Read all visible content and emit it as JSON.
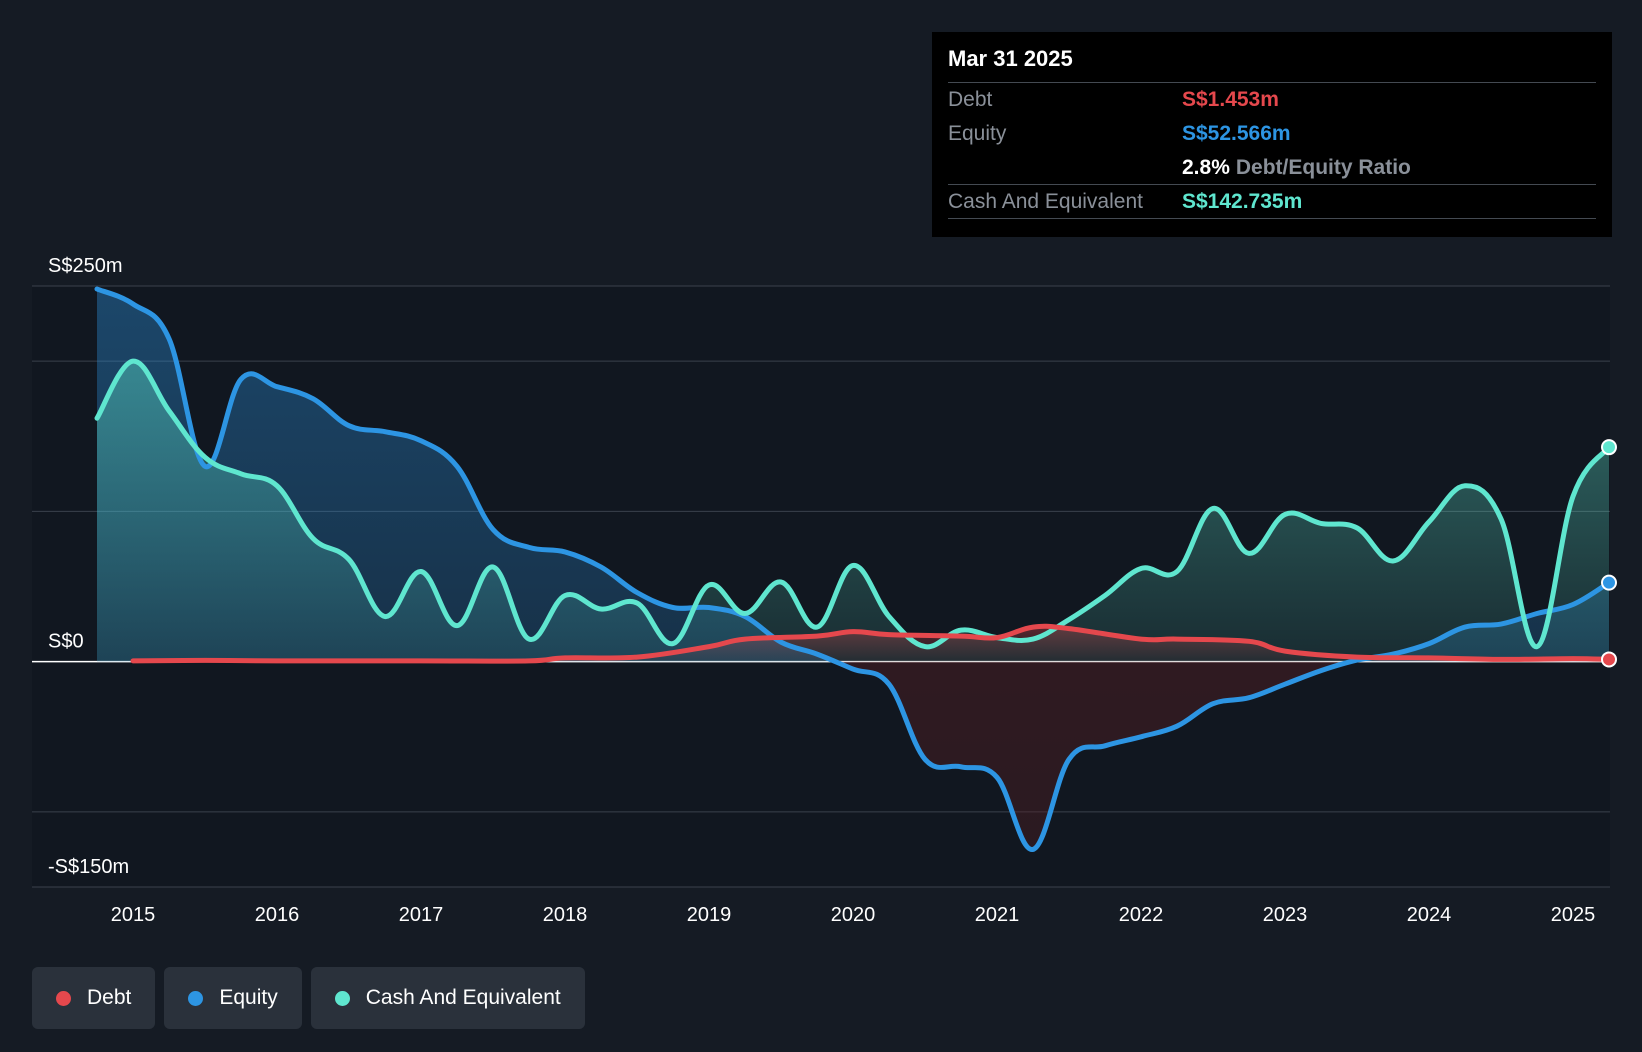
{
  "tooltip": {
    "date": "Mar 31 2025",
    "debt_label": "Debt",
    "debt_value": "S$1.453m",
    "equity_label": "Equity",
    "equity_value": "S$52.566m",
    "ratio_pct": "2.8%",
    "ratio_label": "Debt/Equity Ratio",
    "cash_label": "Cash And Equivalent",
    "cash_value": "S$142.735m"
  },
  "legend": [
    {
      "label": "Debt",
      "color": "#e5484d"
    },
    {
      "label": "Equity",
      "color": "#2d95e3"
    },
    {
      "label": "Cash And Equivalent",
      "color": "#5fe6cf"
    }
  ],
  "chart_data": {
    "type": "area",
    "ylim": [
      -150,
      250
    ],
    "y_tick_labels": [
      {
        "value": 250,
        "label": "S$250m"
      },
      {
        "value": 0,
        "label": "S$0"
      },
      {
        "value": -150,
        "label": "-S$150m"
      }
    ],
    "y_gridlines": [
      250,
      200,
      100,
      0,
      -100,
      -150
    ],
    "x_range": [
      2014.75,
      2025.25
    ],
    "x_ticks": [
      2015,
      2016,
      2017,
      2018,
      2019,
      2020,
      2021,
      2022,
      2023,
      2024,
      2025
    ],
    "x_tick_labels": [
      "2015",
      "2016",
      "2017",
      "2018",
      "2019",
      "2020",
      "2021",
      "2022",
      "2023",
      "2024",
      "2025"
    ],
    "series": [
      {
        "name": "Debt",
        "color": "#e5484d",
        "points": [
          [
            2015.0,
            0.5
          ],
          [
            2015.5,
            0.8
          ],
          [
            2016.0,
            0.5
          ],
          [
            2017.0,
            0.5
          ],
          [
            2017.75,
            0.5
          ],
          [
            2018.0,
            2.5
          ],
          [
            2018.5,
            3
          ],
          [
            2019.0,
            10
          ],
          [
            2019.25,
            15
          ],
          [
            2019.75,
            17
          ],
          [
            2020.0,
            20
          ],
          [
            2020.25,
            18
          ],
          [
            2020.75,
            17
          ],
          [
            2021.0,
            16
          ],
          [
            2021.25,
            23
          ],
          [
            2021.5,
            22
          ],
          [
            2022.0,
            15
          ],
          [
            2022.25,
            15
          ],
          [
            2022.75,
            13.5
          ],
          [
            2023.0,
            7
          ],
          [
            2023.5,
            3
          ],
          [
            2024.0,
            2.5
          ],
          [
            2024.5,
            1.5
          ],
          [
            2025.0,
            2
          ],
          [
            2025.25,
            1.453
          ]
        ]
      },
      {
        "name": "Equity",
        "color": "#2d95e3",
        "points": [
          [
            2014.75,
            248
          ],
          [
            2015.0,
            238
          ],
          [
            2015.25,
            215
          ],
          [
            2015.5,
            130
          ],
          [
            2015.75,
            188
          ],
          [
            2016.0,
            183
          ],
          [
            2016.25,
            175
          ],
          [
            2016.5,
            157
          ],
          [
            2016.75,
            153
          ],
          [
            2017.0,
            147
          ],
          [
            2017.25,
            130
          ],
          [
            2017.5,
            88
          ],
          [
            2017.75,
            76
          ],
          [
            2018.0,
            73
          ],
          [
            2018.25,
            63
          ],
          [
            2018.5,
            46
          ],
          [
            2018.75,
            36
          ],
          [
            2019.0,
            36
          ],
          [
            2019.25,
            30
          ],
          [
            2019.5,
            13
          ],
          [
            2019.75,
            5
          ],
          [
            2020.0,
            -5
          ],
          [
            2020.25,
            -15
          ],
          [
            2020.5,
            -65
          ],
          [
            2020.75,
            -70
          ],
          [
            2021.0,
            -77
          ],
          [
            2021.25,
            -125
          ],
          [
            2021.5,
            -65
          ],
          [
            2021.75,
            -56
          ],
          [
            2022.0,
            -50
          ],
          [
            2022.25,
            -43
          ],
          [
            2022.5,
            -28
          ],
          [
            2022.75,
            -24
          ],
          [
            2023.0,
            -15
          ],
          [
            2023.25,
            -6
          ],
          [
            2023.5,
            1
          ],
          [
            2023.75,
            5
          ],
          [
            2024.0,
            12
          ],
          [
            2024.25,
            23
          ],
          [
            2024.5,
            25
          ],
          [
            2024.75,
            32
          ],
          [
            2025.0,
            38
          ],
          [
            2025.25,
            52.566
          ]
        ]
      },
      {
        "name": "Cash And Equivalent",
        "color": "#5fe6cf",
        "points": [
          [
            2014.75,
            162
          ],
          [
            2015.0,
            200
          ],
          [
            2015.25,
            167
          ],
          [
            2015.5,
            136
          ],
          [
            2015.75,
            125
          ],
          [
            2016.0,
            117
          ],
          [
            2016.25,
            82
          ],
          [
            2016.5,
            68
          ],
          [
            2016.75,
            30
          ],
          [
            2017.0,
            60
          ],
          [
            2017.25,
            24
          ],
          [
            2017.5,
            63
          ],
          [
            2017.75,
            15
          ],
          [
            2018.0,
            44
          ],
          [
            2018.25,
            35
          ],
          [
            2018.5,
            39
          ],
          [
            2018.75,
            12
          ],
          [
            2019.0,
            51
          ],
          [
            2019.25,
            32
          ],
          [
            2019.5,
            53
          ],
          [
            2019.75,
            23
          ],
          [
            2020.0,
            64
          ],
          [
            2020.25,
            30
          ],
          [
            2020.5,
            10
          ],
          [
            2020.75,
            21
          ],
          [
            2021.0,
            16
          ],
          [
            2021.25,
            15
          ],
          [
            2021.5,
            28
          ],
          [
            2021.75,
            44
          ],
          [
            2022.0,
            62
          ],
          [
            2022.25,
            60
          ],
          [
            2022.5,
            102
          ],
          [
            2022.75,
            72
          ],
          [
            2023.0,
            98
          ],
          [
            2023.25,
            92
          ],
          [
            2023.5,
            89
          ],
          [
            2023.75,
            67
          ],
          [
            2024.0,
            93
          ],
          [
            2024.25,
            117
          ],
          [
            2024.5,
            95
          ],
          [
            2024.75,
            10
          ],
          [
            2025.0,
            110
          ],
          [
            2025.25,
            142.735
          ]
        ]
      }
    ]
  }
}
